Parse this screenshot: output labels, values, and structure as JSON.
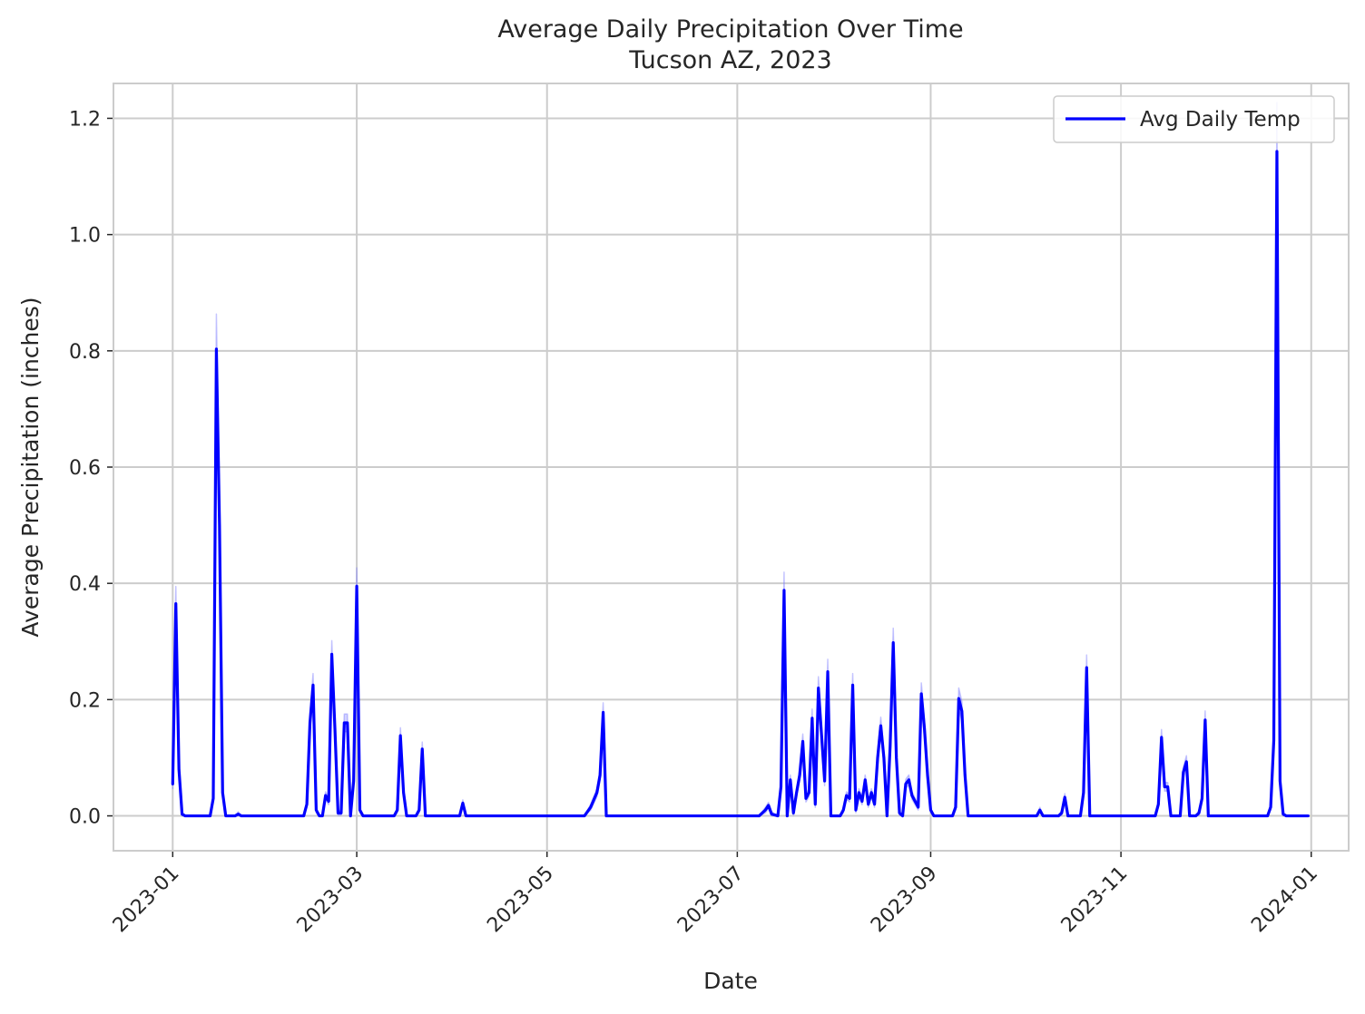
{
  "chart_data": {
    "type": "line",
    "title": "Average Daily Precipitation Over Time",
    "subtitle": "Tucson AZ, 2023",
    "xlabel": "Date",
    "ylabel": "Average Precipitation (inches)",
    "xlim": [
      "2022-12-13",
      "2024-01-13"
    ],
    "ylim": [
      -0.06,
      1.26
    ],
    "x_ticks": [
      "2023-01",
      "2023-03",
      "2023-05",
      "2023-07",
      "2023-09",
      "2023-11",
      "2024-01"
    ],
    "y_ticks": [
      "0.0",
      "0.2",
      "0.4",
      "0.6",
      "0.8",
      "1.0",
      "1.2"
    ],
    "grid": true,
    "legend": {
      "location": "upper right",
      "entries": [
        "Avg Daily Temp"
      ]
    },
    "line_color": "#0000ff",
    "band_color": "#8080ff",
    "series": [
      {
        "name": "Avg Daily Temp",
        "points": [
          [
            "2023-01-01",
            0.055
          ],
          [
            "2023-01-02",
            0.365
          ],
          [
            "2023-01-03",
            0.08
          ],
          [
            "2023-01-04",
            0.003
          ],
          [
            "2023-01-05",
            0.0
          ],
          [
            "2023-01-13",
            0.0
          ],
          [
            "2023-01-14",
            0.03
          ],
          [
            "2023-01-15",
            0.803
          ],
          [
            "2023-01-16",
            0.5
          ],
          [
            "2023-01-17",
            0.04
          ],
          [
            "2023-01-18",
            0.0
          ],
          [
            "2023-01-21",
            0.0
          ],
          [
            "2023-01-22",
            0.003
          ],
          [
            "2023-01-23",
            0.0
          ],
          [
            "2023-02-12",
            0.0
          ],
          [
            "2023-02-13",
            0.02
          ],
          [
            "2023-02-14",
            0.16
          ],
          [
            "2023-02-15",
            0.225
          ],
          [
            "2023-02-16",
            0.01
          ],
          [
            "2023-02-17",
            0.0
          ],
          [
            "2023-02-18",
            0.0
          ],
          [
            "2023-02-19",
            0.035
          ],
          [
            "2023-02-20",
            0.025
          ],
          [
            "2023-02-21",
            0.278
          ],
          [
            "2023-02-22",
            0.15
          ],
          [
            "2023-02-23",
            0.005
          ],
          [
            "2023-02-24",
            0.005
          ],
          [
            "2023-02-25",
            0.16
          ],
          [
            "2023-02-26",
            0.16
          ],
          [
            "2023-02-27",
            0.0
          ],
          [
            "2023-02-28",
            0.06
          ],
          [
            "2023-03-01",
            0.395
          ],
          [
            "2023-03-02",
            0.01
          ],
          [
            "2023-03-03",
            0.0
          ],
          [
            "2023-03-13",
            0.0
          ],
          [
            "2023-03-14",
            0.01
          ],
          [
            "2023-03-15",
            0.138
          ],
          [
            "2023-03-16",
            0.04
          ],
          [
            "2023-03-17",
            0.0
          ],
          [
            "2023-03-20",
            0.0
          ],
          [
            "2023-03-21",
            0.01
          ],
          [
            "2023-03-22",
            0.115
          ],
          [
            "2023-03-23",
            0.0
          ],
          [
            "2023-04-01",
            0.0
          ],
          [
            "2023-04-03",
            0.0
          ],
          [
            "2023-04-04",
            0.022
          ],
          [
            "2023-04-05",
            0.0
          ],
          [
            "2023-05-13",
            0.0
          ],
          [
            "2023-05-15",
            0.015
          ],
          [
            "2023-05-17",
            0.04
          ],
          [
            "2023-05-18",
            0.07
          ],
          [
            "2023-05-19",
            0.178
          ],
          [
            "2023-05-20",
            0.0
          ],
          [
            "2023-07-08",
            0.0
          ],
          [
            "2023-07-10",
            0.01
          ],
          [
            "2023-07-11",
            0.018
          ],
          [
            "2023-07-12",
            0.003
          ],
          [
            "2023-07-14",
            0.0
          ],
          [
            "2023-07-15",
            0.05
          ],
          [
            "2023-07-16",
            0.388
          ],
          [
            "2023-07-17",
            0.0
          ],
          [
            "2023-07-18",
            0.062
          ],
          [
            "2023-07-19",
            0.005
          ],
          [
            "2023-07-20",
            0.04
          ],
          [
            "2023-07-21",
            0.07
          ],
          [
            "2023-07-22",
            0.128
          ],
          [
            "2023-07-23",
            0.03
          ],
          [
            "2023-07-24",
            0.04
          ],
          [
            "2023-07-25",
            0.168
          ],
          [
            "2023-07-26",
            0.02
          ],
          [
            "2023-07-27",
            0.22
          ],
          [
            "2023-07-28",
            0.14
          ],
          [
            "2023-07-29",
            0.06
          ],
          [
            "2023-07-30",
            0.248
          ],
          [
            "2023-07-31",
            0.0
          ],
          [
            "2023-08-03",
            0.0
          ],
          [
            "2023-08-04",
            0.01
          ],
          [
            "2023-08-05",
            0.035
          ],
          [
            "2023-08-06",
            0.03
          ],
          [
            "2023-08-07",
            0.225
          ],
          [
            "2023-08-08",
            0.01
          ],
          [
            "2023-08-09",
            0.04
          ],
          [
            "2023-08-10",
            0.025
          ],
          [
            "2023-08-11",
            0.062
          ],
          [
            "2023-08-12",
            0.02
          ],
          [
            "2023-08-13",
            0.04
          ],
          [
            "2023-08-14",
            0.02
          ],
          [
            "2023-08-15",
            0.1
          ],
          [
            "2023-08-16",
            0.155
          ],
          [
            "2023-08-17",
            0.1
          ],
          [
            "2023-08-18",
            0.0
          ],
          [
            "2023-08-19",
            0.12
          ],
          [
            "2023-08-20",
            0.298
          ],
          [
            "2023-08-21",
            0.1
          ],
          [
            "2023-08-22",
            0.005
          ],
          [
            "2023-08-23",
            0.0
          ],
          [
            "2023-08-24",
            0.055
          ],
          [
            "2023-08-25",
            0.062
          ],
          [
            "2023-08-26",
            0.035
          ],
          [
            "2023-08-27",
            0.025
          ],
          [
            "2023-08-28",
            0.015
          ],
          [
            "2023-08-29",
            0.21
          ],
          [
            "2023-08-30",
            0.15
          ],
          [
            "2023-08-31",
            0.07
          ],
          [
            "2023-09-01",
            0.01
          ],
          [
            "2023-09-02",
            0.0
          ],
          [
            "2023-09-08",
            0.0
          ],
          [
            "2023-09-09",
            0.015
          ],
          [
            "2023-09-10",
            0.202
          ],
          [
            "2023-09-11",
            0.18
          ],
          [
            "2023-09-12",
            0.07
          ],
          [
            "2023-09-13",
            0.0
          ],
          [
            "2023-10-05",
            0.0
          ],
          [
            "2023-10-06",
            0.01
          ],
          [
            "2023-10-07",
            0.0
          ],
          [
            "2023-10-12",
            0.0
          ],
          [
            "2023-10-13",
            0.005
          ],
          [
            "2023-10-14",
            0.032
          ],
          [
            "2023-10-15",
            0.0
          ],
          [
            "2023-10-19",
            0.0
          ],
          [
            "2023-10-20",
            0.04
          ],
          [
            "2023-10-21",
            0.255
          ],
          [
            "2023-10-22",
            0.0
          ],
          [
            "2023-11-12",
            0.0
          ],
          [
            "2023-11-13",
            0.02
          ],
          [
            "2023-11-14",
            0.135
          ],
          [
            "2023-11-15",
            0.05
          ],
          [
            "2023-11-16",
            0.05
          ],
          [
            "2023-11-17",
            0.0
          ],
          [
            "2023-11-20",
            0.0
          ],
          [
            "2023-11-21",
            0.075
          ],
          [
            "2023-11-22",
            0.093
          ],
          [
            "2023-11-23",
            0.0
          ],
          [
            "2023-11-25",
            0.0
          ],
          [
            "2023-11-26",
            0.005
          ],
          [
            "2023-11-27",
            0.03
          ],
          [
            "2023-11-28",
            0.165
          ],
          [
            "2023-11-29",
            0.0
          ],
          [
            "2023-12-18",
            0.0
          ],
          [
            "2023-12-19",
            0.015
          ],
          [
            "2023-12-20",
            0.13
          ],
          [
            "2023-12-21",
            1.143
          ],
          [
            "2023-12-22",
            0.06
          ],
          [
            "2023-12-23",
            0.003
          ],
          [
            "2023-12-24",
            0.0
          ],
          [
            "2023-12-31",
            0.0
          ]
        ]
      }
    ]
  }
}
